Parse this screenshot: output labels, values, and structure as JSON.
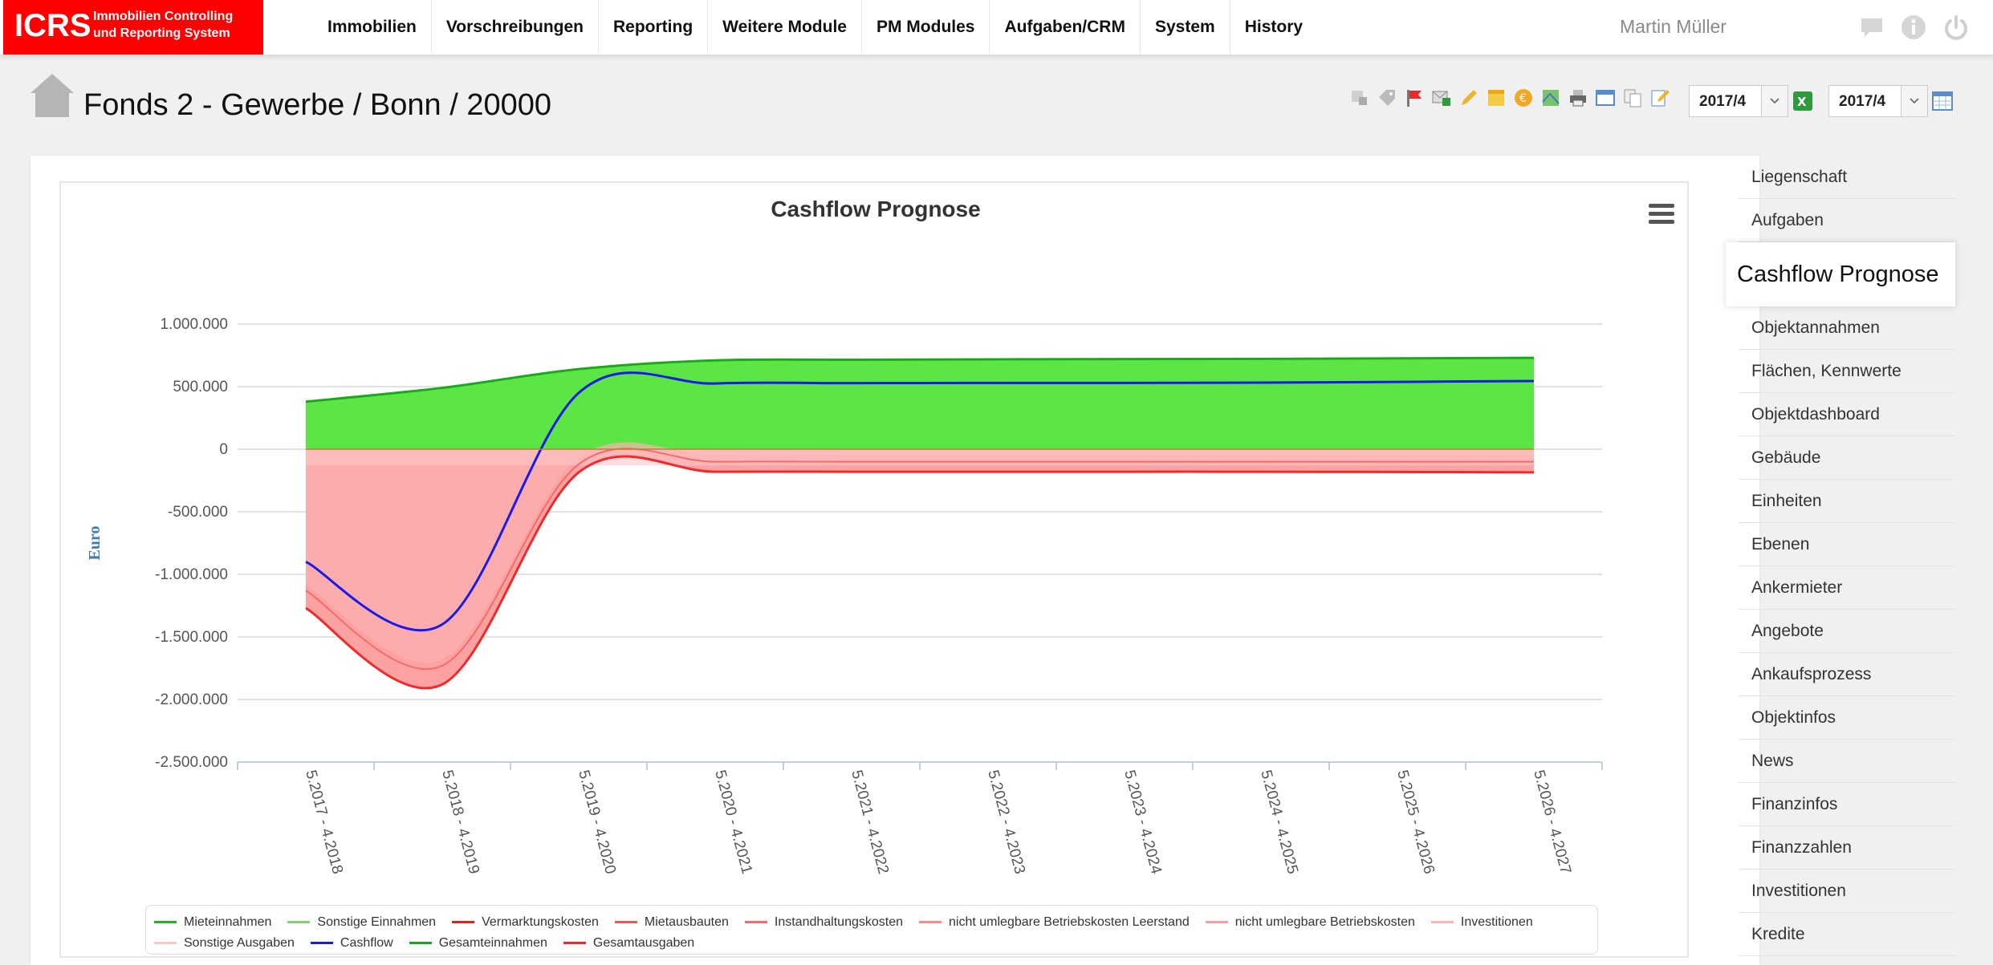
{
  "app": {
    "logo_text": "ICRS",
    "logo_subtitle": "Immobilien Controlling und Reporting System",
    "brand_color": "#fe0000"
  },
  "nav": {
    "items": [
      "Immobilien",
      "Vorschreibungen",
      "Reporting",
      "Weitere Module",
      "PM Modules",
      "Aufgaben/CRM",
      "System",
      "History"
    ]
  },
  "user": {
    "name": "Martin Müller"
  },
  "top_icons": [
    "chat-icon",
    "info-icon",
    "power-icon"
  ],
  "page": {
    "title": "Fonds 2 - Gewerbe / Bonn / 20000",
    "period_from": "2017/4",
    "period_to": "2017/4"
  },
  "toolbar_icons": [
    "edit-objects-icon",
    "tag-icon",
    "flag-icon",
    "mail-excel-icon",
    "pencil-icon",
    "note-icon",
    "euro-icon",
    "map-icon",
    "print-icon",
    "window-icon",
    "copy-icon",
    "edit-document-icon"
  ],
  "sidebar": {
    "items": [
      "Liegenschaft",
      "Aufgaben",
      "Cashflow Prognose",
      "Objektannahmen",
      "Flächen, Kennwerte",
      "Objektdashboard",
      "Gebäude",
      "Einheiten",
      "Ebenen",
      "Ankermieter",
      "Angebote",
      "Ankaufsprozess",
      "Objektinfos",
      "News",
      "Finanzinfos",
      "Finanzzahlen",
      "Investitionen",
      "Kredite"
    ],
    "active_index": 2
  },
  "chart_data": {
    "type": "area",
    "title": "Cashflow Prognose",
    "ylabel": "Euro",
    "ylim": [
      -2500000,
      1000000
    ],
    "yticks": [
      "1.000.000",
      "500.000",
      "0",
      "-500.000",
      "-1.000.000",
      "-1.500.000",
      "-2.000.000",
      "-2.500.000"
    ],
    "categories": [
      "5.2017 - 4.2018",
      "5.2018 - 4.2019",
      "5.2019 - 4.2020",
      "5.2020 - 4.2021",
      "5.2021 - 4.2022",
      "5.2022 - 4.2023",
      "5.2023 - 4.2024",
      "5.2024 - 4.2025",
      "5.2025 - 4.2026",
      "5.2026 - 4.2027"
    ],
    "series": [
      {
        "name": "Mieteinnahmen",
        "color": "#21b521",
        "values": [
          380000,
          490000,
          640000,
          710000,
          715000,
          718000,
          720000,
          722000,
          726000,
          730000
        ]
      },
      {
        "name": "Sonstige Einnahmen",
        "color": "#7cd56a",
        "values": [
          0,
          0,
          0,
          0,
          0,
          0,
          0,
          0,
          0,
          0
        ]
      },
      {
        "name": "Vermarktungskosten",
        "color": "#e2231a",
        "values": [
          0,
          0,
          0,
          0,
          0,
          0,
          0,
          0,
          0,
          0
        ]
      },
      {
        "name": "Mietausbauten",
        "color": "#f0564a",
        "values": [
          -1050000,
          -1650000,
          -40000,
          -20000,
          -20000,
          -20000,
          -20000,
          -20000,
          -20000,
          -20000
        ]
      },
      {
        "name": "Instandhaltungskosten",
        "color": "#f46b6b",
        "values": [
          -20000,
          -20000,
          -20000,
          -20000,
          -20000,
          -20000,
          -20000,
          -20000,
          -20000,
          -20000
        ]
      },
      {
        "name": "nicht umlegbare Betriebskosten Leerstand",
        "color": "#f78c8c",
        "values": [
          -10000,
          -10000,
          -10000,
          -10000,
          -10000,
          -10000,
          -10000,
          -10000,
          -10000,
          -10000
        ]
      },
      {
        "name": "nicht umlegbare Betriebskosten",
        "color": "#f99e9e",
        "values": [
          -10000,
          -10000,
          -10000,
          -10000,
          -10000,
          -10000,
          -10000,
          -10000,
          -10000,
          -10000
        ]
      },
      {
        "name": "Investitionen",
        "color": "#fbb3b3",
        "values": [
          0,
          0,
          0,
          0,
          0,
          0,
          0,
          0,
          0,
          0
        ]
      },
      {
        "name": "Sonstige Ausgaben",
        "color": "#fcc6c6",
        "values": [
          -130000,
          -130000,
          -130000,
          -130000,
          -130000,
          -130000,
          -130000,
          -130000,
          -130000,
          -130000
        ]
      },
      {
        "name": "Cashflow",
        "color": "#1a1ae6",
        "values": [
          -900000,
          -1400000,
          450000,
          525000,
          528000,
          530000,
          530000,
          532000,
          538000,
          545000
        ]
      },
      {
        "name": "Gesamteinnahmen",
        "color": "#1aa51a",
        "values": [
          380000,
          490000,
          640000,
          710000,
          715000,
          718000,
          720000,
          722000,
          726000,
          730000
        ]
      },
      {
        "name": "Gesamtausgaben",
        "color": "#f02a2a",
        "values": [
          -1270000,
          -1880000,
          -185000,
          -180000,
          -180000,
          -180000,
          -180000,
          -180000,
          -182000,
          -185000
        ]
      }
    ],
    "grid": true,
    "legend_position": "bottom"
  }
}
